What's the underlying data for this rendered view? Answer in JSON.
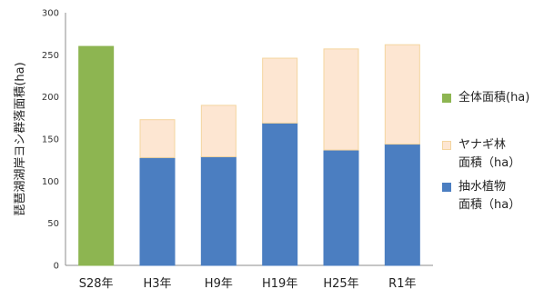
{
  "chart_data": {
    "type": "bar",
    "stacked": true,
    "categories": [
      "S28年",
      "H3年",
      "H9年",
      "H19年",
      "H25年",
      "R1年"
    ],
    "series": [
      {
        "name": "全体面積(ha)",
        "values": [
          260,
          null,
          null,
          null,
          null,
          null
        ],
        "color": "#8db551",
        "stroke": "#8db551"
      },
      {
        "name": "抽水植物\n面積（ha）",
        "values": [
          null,
          128,
          129,
          169,
          137,
          144
        ],
        "color": "#4b7ec1",
        "stroke": "#4b7ec1"
      },
      {
        "name": "ヤナギ林\n面積（ha）",
        "values": [
          null,
          45,
          61,
          77,
          120,
          118
        ],
        "color": "#fde6d2",
        "stroke": "#f4d59f"
      }
    ],
    "ylabel": "琵琶湖湖岸ヨシ群落面積(ha)",
    "xlabel": "",
    "ylim": [
      0,
      300
    ],
    "yticks": [
      0,
      50,
      100,
      150,
      200,
      250,
      300
    ],
    "grid": false,
    "legend_position": "right"
  }
}
